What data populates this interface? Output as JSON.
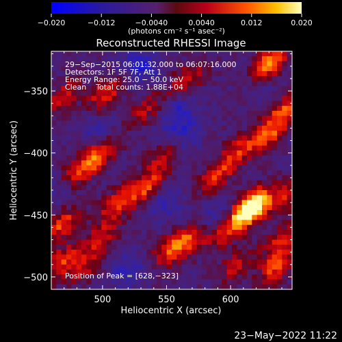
{
  "colorbar": {
    "ticks": [
      "−0.020",
      "−0.012",
      "−0.0040",
      "0.0040",
      "0.012",
      "0.020"
    ],
    "unit_label": "(photons cm⁻² s⁻¹ asec⁻²)",
    "range": [
      -0.02,
      0.02
    ]
  },
  "chart_data": {
    "type": "heatmap",
    "title": "Reconstructed RHESSI Image",
    "xlabel": "Heliocentric X (arcsec)",
    "ylabel": "Heliocentric Y (arcsec)",
    "xlim": [
      460,
      648
    ],
    "ylim": [
      -510,
      -318
    ],
    "xticks": [
      500,
      550,
      600
    ],
    "yticks": [
      -350,
      -400,
      -450,
      -500
    ],
    "xtick_labels": [
      "500",
      "550",
      "600"
    ],
    "ytick_labels": [
      "−350",
      "−400",
      "−450",
      "−500"
    ],
    "annotations": [
      "29−Sep−2015 06:01:32.000 to 06:07:16.000",
      "Detectors: 1F 5F 7F, Att 1",
      "Energy Range: 25.0 − 50.0 keV",
      "Clean    Total counts: 1.88E+04"
    ],
    "peak_label": "Position of Peak = [628,−323]",
    "peak": [
      628,
      -323
    ],
    "hot_blobs": [
      {
        "x": 628,
        "y": -330,
        "v": 0.02
      },
      {
        "x": 565,
        "y": -342,
        "v": 0.011
      },
      {
        "x": 535,
        "y": -364,
        "v": 0.009
      },
      {
        "x": 502,
        "y": -354,
        "v": 0.012
      },
      {
        "x": 470,
        "y": -355,
        "v": 0.01
      },
      {
        "x": 643,
        "y": -366,
        "v": 0.013
      },
      {
        "x": 629,
        "y": -386,
        "v": 0.012
      },
      {
        "x": 498,
        "y": -401,
        "v": 0.014
      },
      {
        "x": 480,
        "y": -416,
        "v": 0.011
      },
      {
        "x": 548,
        "y": -400,
        "v": 0.008
      },
      {
        "x": 606,
        "y": -398,
        "v": 0.01
      },
      {
        "x": 588,
        "y": -420,
        "v": 0.012
      },
      {
        "x": 535,
        "y": -427,
        "v": 0.014
      },
      {
        "x": 511,
        "y": -441,
        "v": 0.012
      },
      {
        "x": 468,
        "y": -458,
        "v": 0.013
      },
      {
        "x": 620,
        "y": -440,
        "v": 0.011
      },
      {
        "x": 614,
        "y": -447,
        "v": 0.019
      },
      {
        "x": 596,
        "y": -462,
        "v": 0.014
      },
      {
        "x": 643,
        "y": -436,
        "v": 0.009
      },
      {
        "x": 568,
        "y": -471,
        "v": 0.012
      },
      {
        "x": 552,
        "y": -478,
        "v": 0.011
      },
      {
        "x": 498,
        "y": -470,
        "v": 0.01
      },
      {
        "x": 468,
        "y": -488,
        "v": 0.012
      },
      {
        "x": 640,
        "y": -470,
        "v": 0.01
      },
      {
        "x": 636,
        "y": -492,
        "v": 0.013
      },
      {
        "x": 604,
        "y": -491,
        "v": 0.009
      },
      {
        "x": 486,
        "y": -493,
        "v": 0.008
      }
    ],
    "cold_blobs": [
      {
        "x": 530,
        "y": -330,
        "v": -0.01
      },
      {
        "x": 496,
        "y": -380,
        "v": -0.006
      },
      {
        "x": 560,
        "y": -385,
        "v": -0.008
      },
      {
        "x": 620,
        "y": -340,
        "v": -0.006
      },
      {
        "x": 548,
        "y": -440,
        "v": -0.007
      },
      {
        "x": 590,
        "y": -455,
        "v": -0.009
      },
      {
        "x": 520,
        "y": -495,
        "v": -0.008
      },
      {
        "x": 560,
        "y": -365,
        "v": -0.008
      },
      {
        "x": 465,
        "y": -430,
        "v": -0.005
      }
    ]
  },
  "footer": {
    "date": "23−May−2022 11:22"
  }
}
